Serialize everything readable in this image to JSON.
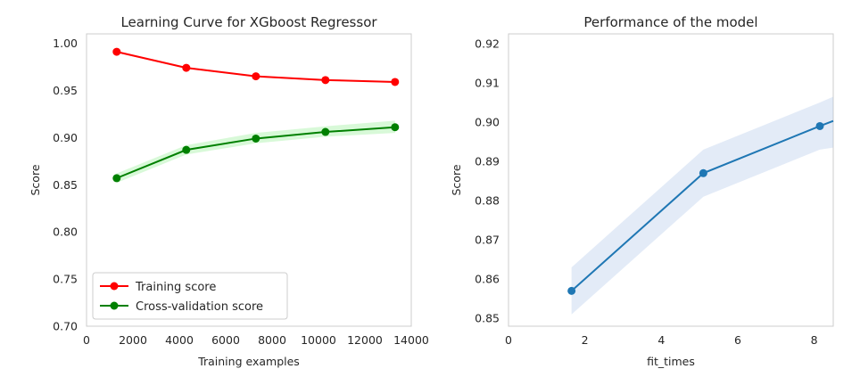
{
  "colors": {
    "train": "#ff0000",
    "cv": "#008000",
    "cv_band": "#90ee90",
    "perf": "#1f77b4",
    "perf_band": "#aec7e8",
    "axes_edge": "#cccccc"
  },
  "chart_data": [
    {
      "type": "line",
      "title": "Learning Curve for XGboost Regressor",
      "xlabel": "Training examples",
      "ylabel": "Score",
      "xlim": [
        0,
        14000
      ],
      "ylim": [
        0.7,
        1.01
      ],
      "grid": false,
      "legend_position": "lower-left",
      "x_ticks": [
        0,
        2000,
        4000,
        6000,
        8000,
        10000,
        12000,
        14000
      ],
      "x_tick_labels": [
        "0",
        "2000",
        "4000",
        "6000",
        "8000",
        "10000",
        "12000",
        "14000"
      ],
      "y_ticks": [
        0.7,
        0.75,
        0.8,
        0.85,
        0.9,
        0.95,
        1.0
      ],
      "y_tick_labels": [
        "0.70",
        "0.75",
        "0.80",
        "0.85",
        "0.90",
        "0.95",
        "1.00"
      ],
      "x": [
        1300,
        4300,
        7300,
        10300,
        13300
      ],
      "series": [
        {
          "name": "Training score",
          "values": [
            0.991,
            0.974,
            0.965,
            0.961,
            0.959
          ],
          "band_lower": [
            0.99,
            0.973,
            0.964,
            0.96,
            0.958
          ],
          "band_upper": [
            0.992,
            0.975,
            0.966,
            0.962,
            0.96
          ]
        },
        {
          "name": "Cross-validation score",
          "values": [
            0.857,
            0.887,
            0.899,
            0.906,
            0.911
          ],
          "band_lower": [
            0.852,
            0.882,
            0.894,
            0.901,
            0.905
          ],
          "band_upper": [
            0.862,
            0.892,
            0.905,
            0.912,
            0.918
          ]
        }
      ]
    },
    {
      "type": "line",
      "title": "Performance of the model",
      "xlabel": "fit_times",
      "ylabel": "Score",
      "xlim": [
        0,
        8.5
      ],
      "ylim": [
        0.848,
        0.9225
      ],
      "grid": false,
      "x_ticks": [
        0,
        2,
        4,
        6,
        8
      ],
      "x_tick_labels": [
        "0",
        "2",
        "4",
        "6",
        "8"
      ],
      "y_ticks": [
        0.85,
        0.86,
        0.87,
        0.88,
        0.89,
        0.9,
        0.91,
        0.92
      ],
      "y_tick_labels": [
        "0.85",
        "0.86",
        "0.87",
        "0.88",
        "0.89",
        "0.90",
        "0.91",
        "0.92"
      ],
      "series": [
        {
          "x": [
            1.65,
            5.1,
            8.15,
            8.5
          ],
          "values": [
            0.857,
            0.887,
            0.899,
            0.9003
          ],
          "band_lower": [
            0.851,
            0.881,
            0.893,
            0.8935
          ],
          "band_upper": [
            0.863,
            0.893,
            0.905,
            0.9065
          ],
          "marker_points": 3
        }
      ]
    }
  ]
}
